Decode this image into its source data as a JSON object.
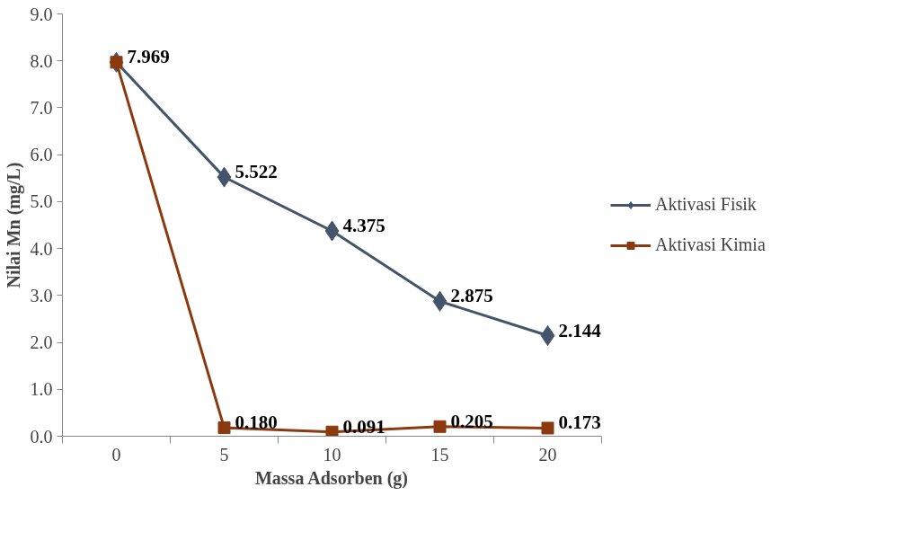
{
  "chart_data": {
    "type": "line",
    "xlabel": "Massa Adsorben (g)",
    "ylabel": "Nilai Mn (mg/L)",
    "categories": [
      "0",
      "5",
      "10",
      "15",
      "20"
    ],
    "ylim": [
      0,
      9
    ],
    "yticks": [
      {
        "value": 0,
        "label": "0.0"
      },
      {
        "value": 1,
        "label": "1.0"
      },
      {
        "value": 2,
        "label": "2.0"
      },
      {
        "value": 3,
        "label": "3.0"
      },
      {
        "value": 4,
        "label": "4.0"
      },
      {
        "value": 5,
        "label": "5.0"
      },
      {
        "value": 6,
        "label": "6.0"
      },
      {
        "value": 7,
        "label": "7.0"
      },
      {
        "value": 8,
        "label": "8.0"
      },
      {
        "value": 9,
        "label": "9.0"
      }
    ],
    "grid": false,
    "legend": "right",
    "series": [
      {
        "name": "Aktivasi Fisik",
        "color": "#44546a",
        "marker": "diamond",
        "values": [
          7.969,
          5.522,
          4.375,
          2.875,
          2.144
        ],
        "value_labels": [
          null,
          "5.522",
          "4.375",
          "2.875",
          "2.144"
        ]
      },
      {
        "name": "Aktivasi Kimia",
        "color": "#8b3a0f",
        "marker": "square",
        "values": [
          7.969,
          0.18,
          0.091,
          0.205,
          0.173
        ],
        "value_labels": [
          "7.969",
          "0.180",
          "0.091",
          "0.205",
          "0.173"
        ]
      }
    ]
  }
}
